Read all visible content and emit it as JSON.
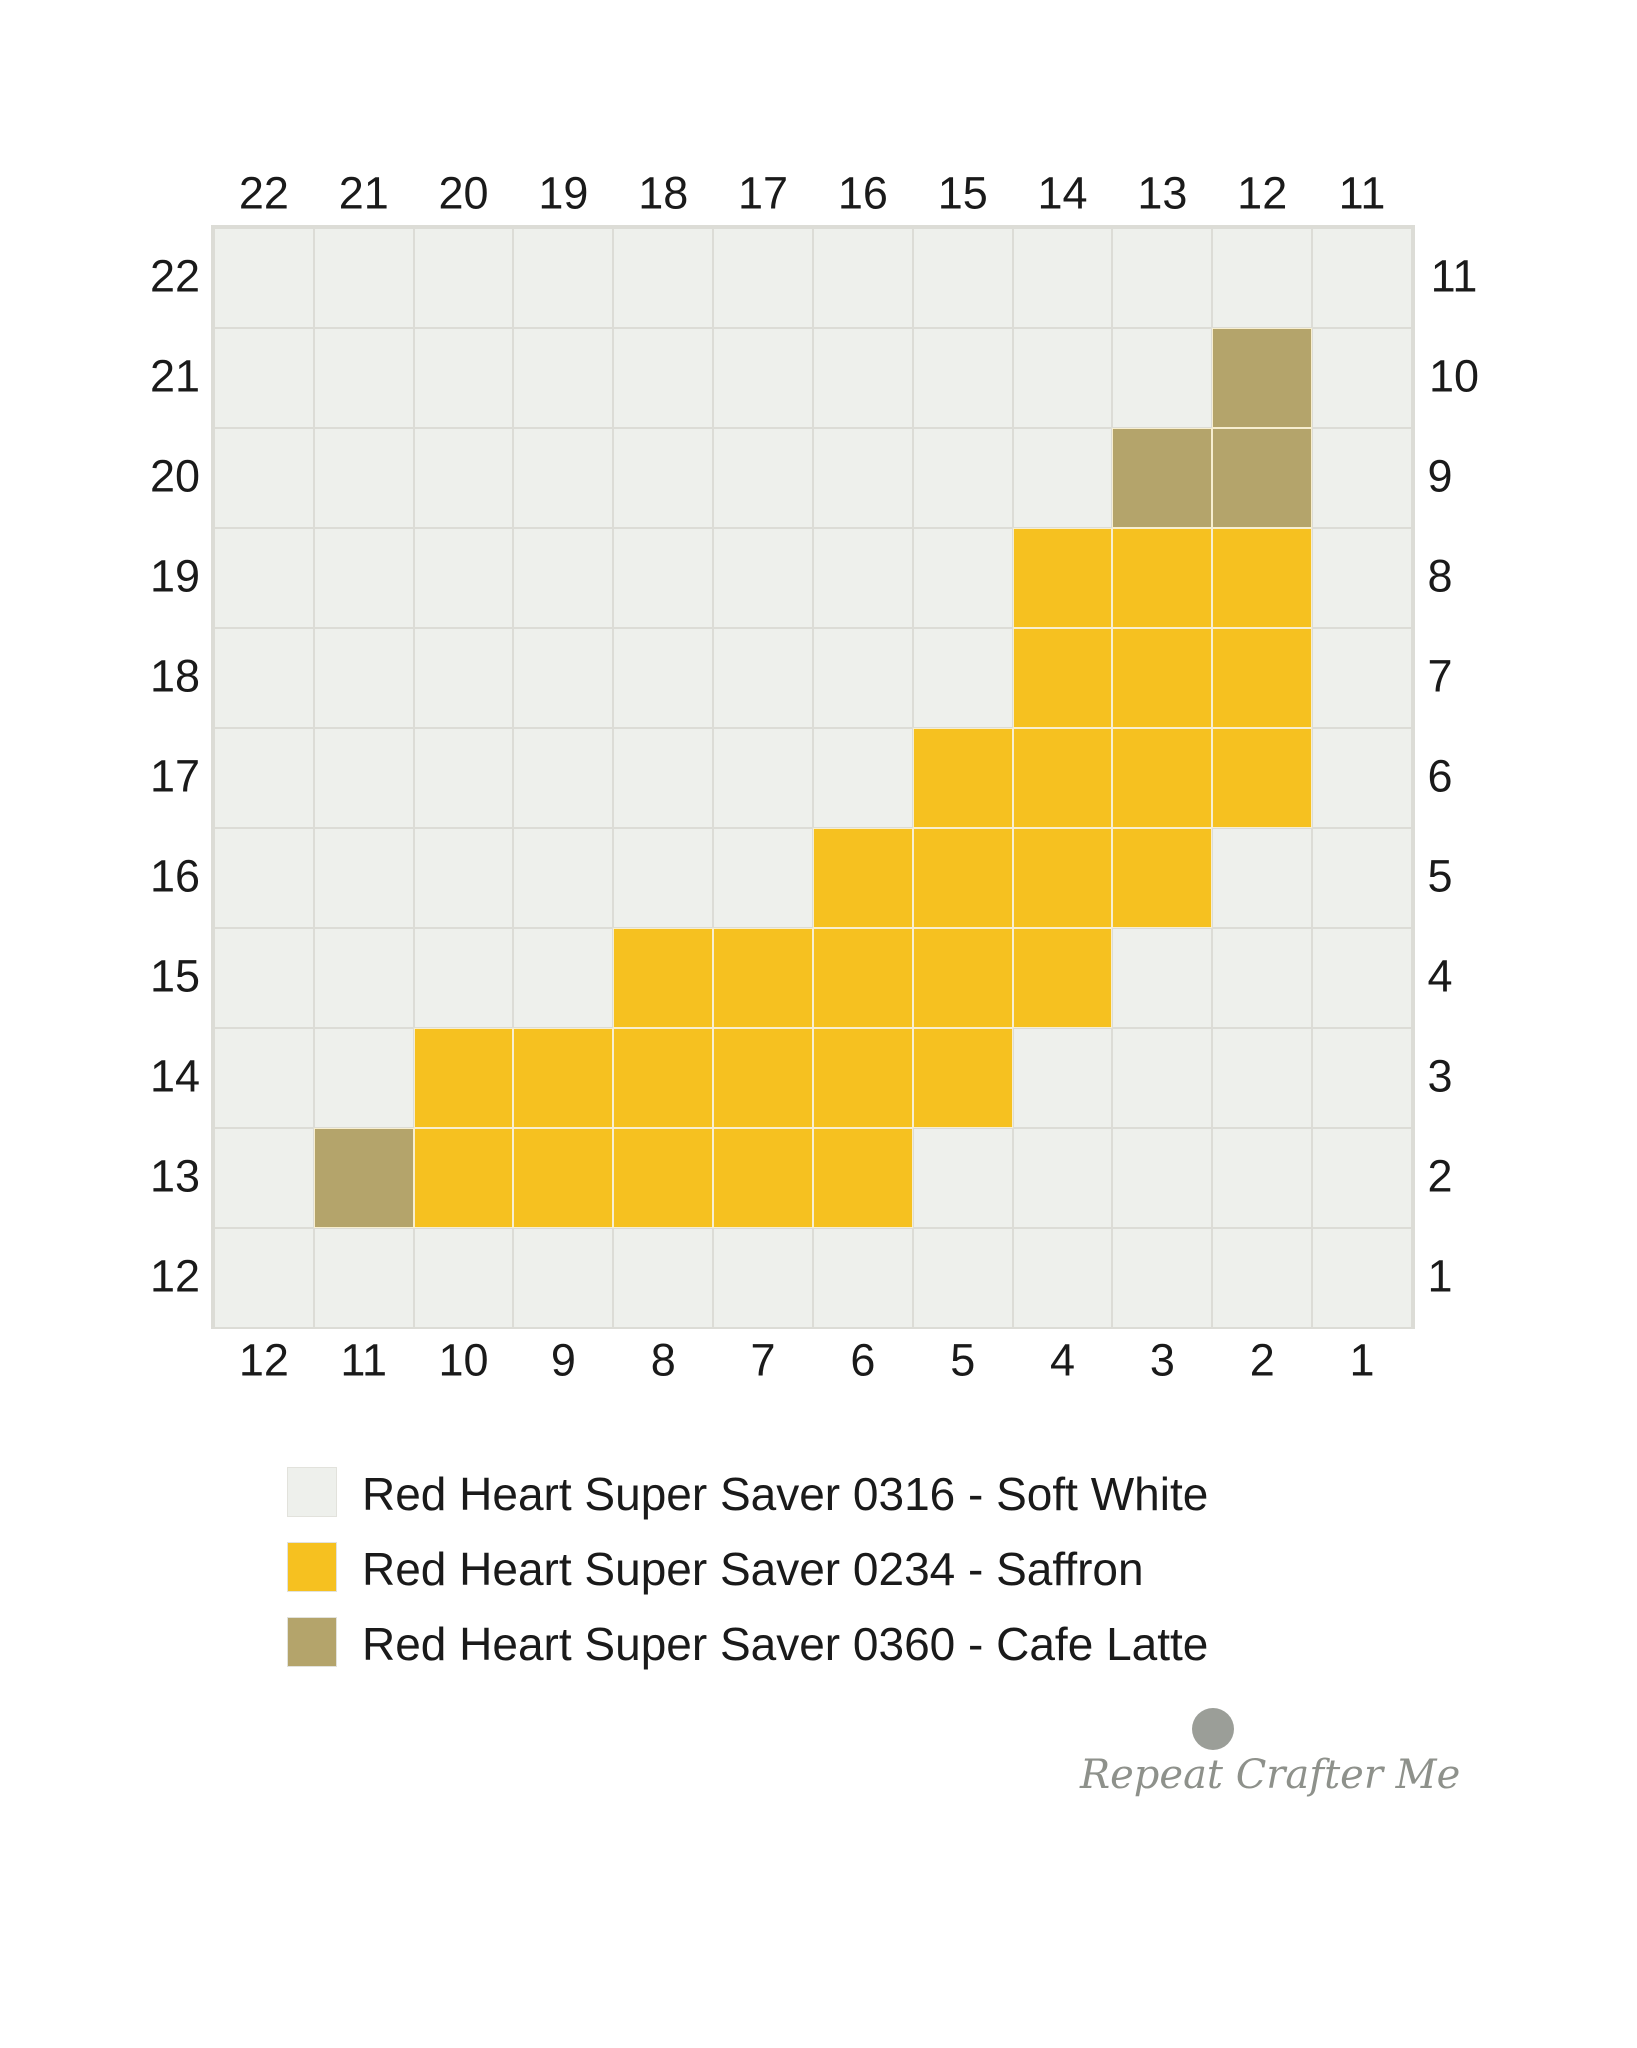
{
  "chart": {
    "top_labels": [
      "22",
      "21",
      "20",
      "19",
      "18",
      "17",
      "16",
      "15",
      "14",
      "13",
      "12",
      "11"
    ],
    "bottom_labels": [
      "12",
      "11",
      "10",
      "9",
      "8",
      "7",
      "6",
      "5",
      "4",
      "3",
      "2",
      "1"
    ],
    "left_labels": [
      "22",
      "21",
      "20",
      "19",
      "18",
      "17",
      "16",
      "15",
      "14",
      "13",
      "12"
    ],
    "right_labels": [
      "11",
      "10",
      "9",
      "8",
      "7",
      "6",
      "5",
      "4",
      "3",
      "2",
      "1"
    ],
    "colors": {
      "soft_white": "#eef0ec",
      "saffron": "#f6c120",
      "cafe_latte": "#b4a46b",
      "grid_line": "#dcdcd6"
    },
    "grid": [
      "WWWWWWWWWWWW",
      "WWWWWWWWWWLW",
      "WWWWWWWWWLLW",
      "WWWWWWWWSSSW",
      "WWWWWWWWSSSW",
      "WWWWWWWSSSSW",
      "WWWWWWSSSSWW",
      "WWWWSSSSSWWW",
      "WWSSSSSSWWWW",
      "WLSSSSSWWWWW",
      "WWWWWWWWWWWW"
    ]
  },
  "legend": [
    {
      "label": "Red Heart Super Saver 0316 - Soft White",
      "color": "#eef0ec"
    },
    {
      "label": "Red Heart Super Saver 0234 - Saffron",
      "color": "#f6c120"
    },
    {
      "label": "Red Heart Super Saver 0360 - Cafe Latte",
      "color": "#b4a46b"
    }
  ],
  "logo": {
    "text": "Repeat Crafter Me",
    "icon": "yarn-ball-icon"
  }
}
